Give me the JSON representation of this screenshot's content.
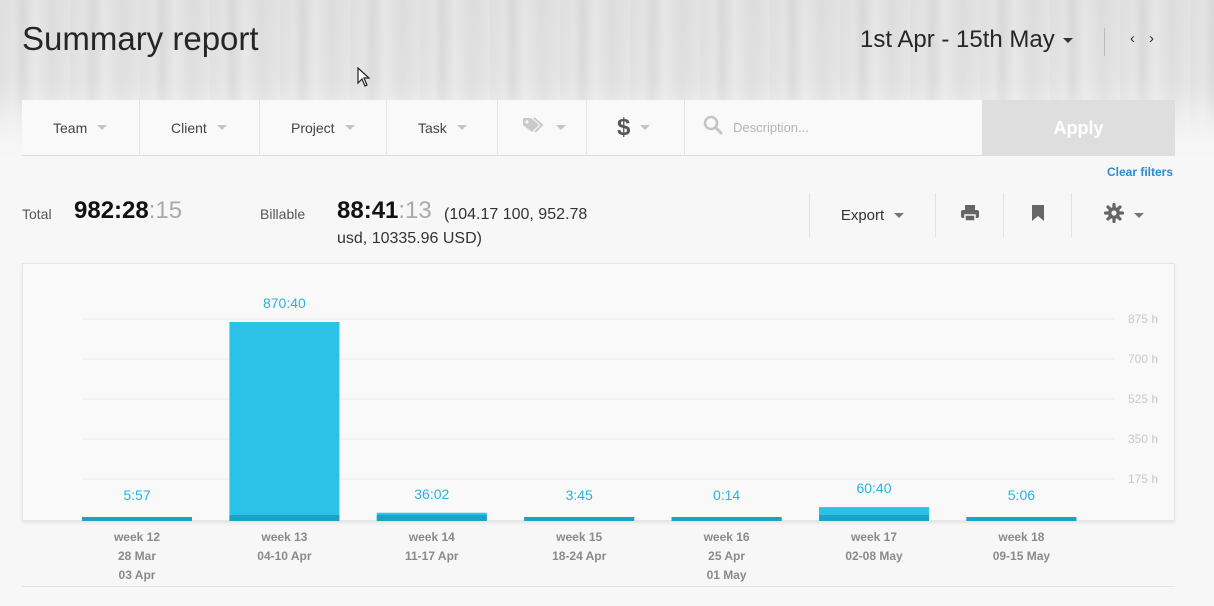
{
  "header": {
    "title": "Summary report",
    "date_range": "1st Apr - 15th May",
    "prev_label": "‹",
    "next_label": "›"
  },
  "filters": {
    "team": "Team",
    "client": "Client",
    "project": "Project",
    "task": "Task",
    "tags_icon": "tag-icon",
    "billable_icon": "dollar-icon",
    "description_placeholder": "Description...",
    "apply": "Apply",
    "clear": "Clear filters"
  },
  "totals": {
    "total_label": "Total",
    "total_main": "982:28",
    "total_sec": ":15",
    "billable_label": "Billable",
    "billable_main": "88:41",
    "billable_sec": ":13",
    "billable_amount_1": "(104.17 100, 952.78",
    "billable_amount_2": "usd, 10335.96 USD)"
  },
  "toolbar": {
    "export": "Export",
    "print_icon": "print-icon",
    "bookmark_icon": "bookmark-icon",
    "settings_icon": "gear-icon"
  },
  "colors": {
    "bar": "#2cc1e6",
    "bar_billable": "#1aa3c6",
    "value_label": "#29b3dc",
    "axis_label": "#c9c9c9",
    "apply_bg": "#dedede",
    "link": "#2a8ccb"
  },
  "chart_data": {
    "type": "bar",
    "y_unit": "h",
    "ylim": [
      0,
      1050
    ],
    "yticks": [
      175,
      350,
      525,
      700,
      875
    ],
    "ytick_labels": [
      "175 h",
      "350 h",
      "525 h",
      "700 h",
      "875 h"
    ],
    "categories": [
      [
        "week 12",
        "28 Mar",
        "03 Apr"
      ],
      [
        "week 13",
        "04-10 Apr"
      ],
      [
        "week 14",
        "11-17 Apr"
      ],
      [
        "week 15",
        "18-24 Apr"
      ],
      [
        "week 16",
        "25 Apr",
        "01 May"
      ],
      [
        "week 17",
        "02-08 May"
      ],
      [
        "week 18",
        "09-15 May"
      ]
    ],
    "values": [
      5.95,
      870.67,
      36.03,
      3.75,
      0.23,
      60.67,
      5.1
    ],
    "value_labels": [
      "5:57",
      "870:40",
      "36:02",
      "3:45",
      "0:14",
      "60:40",
      "5:06"
    ]
  }
}
